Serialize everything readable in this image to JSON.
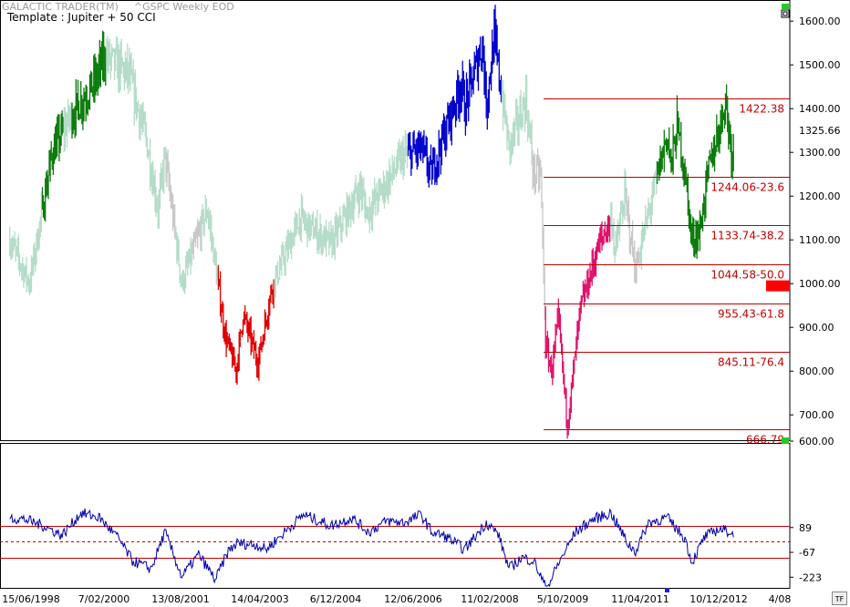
{
  "header": {
    "app_title": "GALACTIC TRADER(TM)",
    "symbol_title": "^GSPC Weekly EOD",
    "template_label": "Template : Jupiter + 50 CCI"
  },
  "colors": {
    "background": "#ffffff",
    "price_default": "#b4dcc8",
    "price_grey": "#c8c8c8",
    "price_green": "#0a7a0a",
    "price_blue": "#0000cc",
    "price_red": "#e00000",
    "price_pink": "#e0106a",
    "fib_line": "#c00000",
    "cci_line": "#0000aa",
    "indicator_marker_green": "#22cc22",
    "current_marker_red": "#ff0000"
  },
  "buttons": {
    "top_icon": "window-restore-icon",
    "tf_label": "TF"
  },
  "chart_data": [
    {
      "type": "line",
      "panel": "price",
      "scale": "linear",
      "ylim": [
        640,
        1640
      ],
      "yticks": [
        700,
        800,
        900,
        1000,
        1100,
        1200,
        1300,
        1400,
        1500,
        1600
      ],
      "ytick_labels": [
        "700.00",
        "800.00",
        "900.00",
        "1000.00",
        "1100.00",
        "1200.00",
        "1300.00",
        "1400.00",
        "1500.00",
        "1600.00"
      ],
      "last_price_label": "1325.66",
      "last_price": 1325.66,
      "current_marker_value": 995,
      "x_dates": [
        "1998-05-18",
        "1998-10-05",
        "1999-03-15",
        "1999-07-19",
        "2000-01-10",
        "2000-03-20",
        "2000-09-04",
        "2001-01-08",
        "2001-04-02",
        "2001-05-21",
        "2001-09-17",
        "2002-03-18",
        "2002-07-22",
        "2002-10-07",
        "2002-11-25",
        "2003-03-10",
        "2003-06-16",
        "2004-01-05",
        "2004-03-01",
        "2004-08-09",
        "2005-03-07",
        "2005-04-18",
        "2006-01-02",
        "2006-05-08",
        "2006-07-17",
        "2007-02-19",
        "2007-03-12",
        "2007-07-16",
        "2007-08-13",
        "2007-10-08",
        "2008-01-21",
        "2008-05-19",
        "2008-07-14",
        "2008-09-01",
        "2008-10-06",
        "2008-11-17",
        "2009-01-05",
        "2009-03-09",
        "2009-06-08",
        "2009-10-19",
        "2010-01-18",
        "2010-02-08",
        "2010-04-19",
        "2010-07-05",
        "2010-11-01",
        "2011-02-14",
        "2011-03-14",
        "2011-04-25",
        "2011-06-13",
        "2011-08-08",
        "2011-10-03",
        "2011-11-28",
        "2012-02-13",
        "2012-04-02",
        "2012-05-14",
        "2012-05-28"
      ],
      "series": [
        {
          "values": [
            1100,
            1000,
            1300,
            1380,
            1460,
            1520,
            1480,
            1330,
            1170,
            1290,
            1000,
            1170,
            880,
            800,
            930,
            820,
            990,
            1150,
            1130,
            1090,
            1220,
            1160,
            1290,
            1310,
            1250,
            1460,
            1400,
            1550,
            1410,
            1560,
            1310,
            1420,
            1250,
            1250,
            860,
            800,
            920,
            676,
            940,
            1090,
            1150,
            1070,
            1200,
            1030,
            1200,
            1340,
            1270,
            1360,
            1270,
            1100,
            1120,
            1250,
            1350,
            1420,
            1300,
            1320
          ]
        }
      ],
      "fib_levels": [
        {
          "value": 1422.38,
          "label": "1422.38"
        },
        {
          "value": 1244.06,
          "label": "1244.06-23.6"
        },
        {
          "value": 1133.74,
          "label": "1133.74-38.2"
        },
        {
          "value": 1044.58,
          "label": "1044.58-50.0"
        },
        {
          "value": 955.43,
          "label": "955.43-61.8"
        },
        {
          "value": 845.11,
          "label": "845.11-76.4"
        },
        {
          "value": 666.79,
          "label": "666.79"
        }
      ],
      "color_segments": [
        {
          "from": "1999-01-04",
          "to": "1999-06-01",
          "color": "green"
        },
        {
          "from": "1999-08-02",
          "to": "2000-03-27",
          "color": "green"
        },
        {
          "from": "2001-06-01",
          "to": "2001-08-01",
          "color": "grey"
        },
        {
          "from": "2001-12-01",
          "to": "2002-02-01",
          "color": "grey"
        },
        {
          "from": "2002-06-03",
          "to": "2003-06-30",
          "color": "red"
        },
        {
          "from": "2006-02-06",
          "to": "2007-11-26",
          "color": "blue"
        },
        {
          "from": "2008-07-07",
          "to": "2008-10-06",
          "color": "grey"
        },
        {
          "from": "2008-10-06",
          "to": "2010-01-04",
          "color": "pink"
        },
        {
          "from": "2010-05-03",
          "to": "2010-07-26",
          "color": "grey"
        },
        {
          "from": "2010-12-06",
          "to": "2012-05-28",
          "color": "green"
        }
      ]
    },
    {
      "type": "line",
      "panel": "cci",
      "ylim": [
        -290,
        620
      ],
      "yticks": [
        600,
        89,
        -67,
        -223
      ],
      "ytick_labels": [
        "600.00",
        "89",
        "-67",
        "-223"
      ],
      "reference_lines": [
        {
          "value": 100,
          "style": "solid"
        },
        {
          "value": 0,
          "style": "dashed"
        },
        {
          "value": -100,
          "style": "solid"
        }
      ],
      "x_dates": [
        "1998-05-18",
        "1998-09-01",
        "1999-01-11",
        "1999-05-24",
        "1999-10-04",
        "2000-02-14",
        "2000-06-26",
        "2000-10-02",
        "2001-02-12",
        "2001-05-21",
        "2001-09-17",
        "2002-01-14",
        "2002-05-13",
        "2002-08-12",
        "2002-10-14",
        "2003-03-03",
        "2003-05-05",
        "2004-01-26",
        "2004-08-09",
        "2005-01-03",
        "2005-05-02",
        "2005-09-05",
        "2006-01-09",
        "2006-05-08",
        "2006-07-24",
        "2006-11-06",
        "2007-03-12",
        "2007-08-13",
        "2007-11-05",
        "2008-01-21",
        "2008-04-21",
        "2008-07-14",
        "2008-10-13",
        "2008-12-29",
        "2009-05-04",
        "2009-09-07",
        "2010-01-11",
        "2010-05-17",
        "2010-07-05",
        "2010-10-04",
        "2011-02-14",
        "2011-06-20",
        "2011-08-08",
        "2011-11-07",
        "2012-02-13",
        "2012-05-14",
        "2012-05-28"
      ],
      "series": [
        {
          "values": [
            150,
            140,
            100,
            40,
            180,
            150,
            20,
            -120,
            -170,
            60,
            -220,
            -80,
            -240,
            -60,
            -10,
            -20,
            -50,
            170,
            100,
            150,
            60,
            130,
            120,
            170,
            60,
            30,
            -50,
            120,
            50,
            -170,
            -100,
            -120,
            -300,
            -150,
            60,
            140,
            180,
            -20,
            -60,
            120,
            150,
            20,
            -130,
            30,
            80,
            60,
            20
          ]
        }
      ]
    }
  ],
  "x_axis": {
    "tick_labels": [
      "15/06/1998",
      "7/02/2000",
      "13/08/2001",
      "14/04/2003",
      "6/12/2004",
      "12/06/2006",
      "11/02/2008",
      "5/10/2009",
      "11/04/2011",
      "10/12/2012",
      "4/08"
    ]
  }
}
